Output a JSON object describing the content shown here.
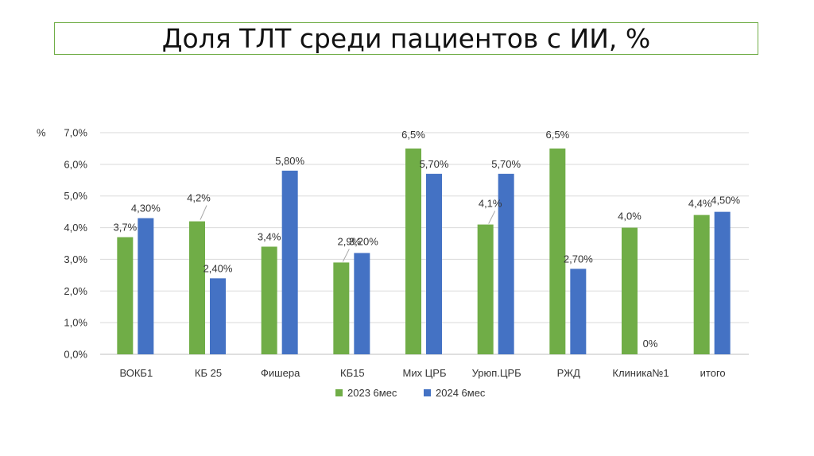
{
  "chart_data": {
    "type": "bar",
    "title": "Доля ТЛТ среди пациентов с ИИ, %",
    "ylabel": "%",
    "ylim": [
      0,
      7
    ],
    "ytick_step": 1,
    "ytick_labels": [
      "0,0%",
      "1,0%",
      "2,0%",
      "3,0%",
      "4,0%",
      "5,0%",
      "6,0%",
      "7,0%"
    ],
    "grid": true,
    "legend_position": "bottom",
    "categories": [
      "ВОКБ1",
      "КБ 25",
      "Фишера",
      "КБ15",
      "Мих ЦРБ",
      "Урюп.ЦРБ",
      "РЖД",
      "Клиника№1",
      "итого"
    ],
    "series": [
      {
        "name": "2023 6мес",
        "color": "#70ad47",
        "values": [
          3.7,
          4.2,
          3.4,
          2.9,
          6.5,
          4.1,
          6.5,
          4.0,
          4.4
        ],
        "labels": [
          "3,7%",
          "4,2%",
          "3,4%",
          "2,9%",
          "6,5%",
          "4,1%",
          "6,5%",
          "4,0%",
          "4,4%"
        ]
      },
      {
        "name": "2024 6мес",
        "color": "#4472c4",
        "values": [
          4.3,
          2.4,
          5.8,
          3.2,
          5.7,
          5.7,
          2.7,
          0,
          4.5
        ],
        "labels": [
          "4,30%",
          "2,40%",
          "5,80%",
          "3,20%",
          "5,70%",
          "5,70%",
          "2,70%",
          "0%",
          "4,50%"
        ]
      }
    ]
  }
}
